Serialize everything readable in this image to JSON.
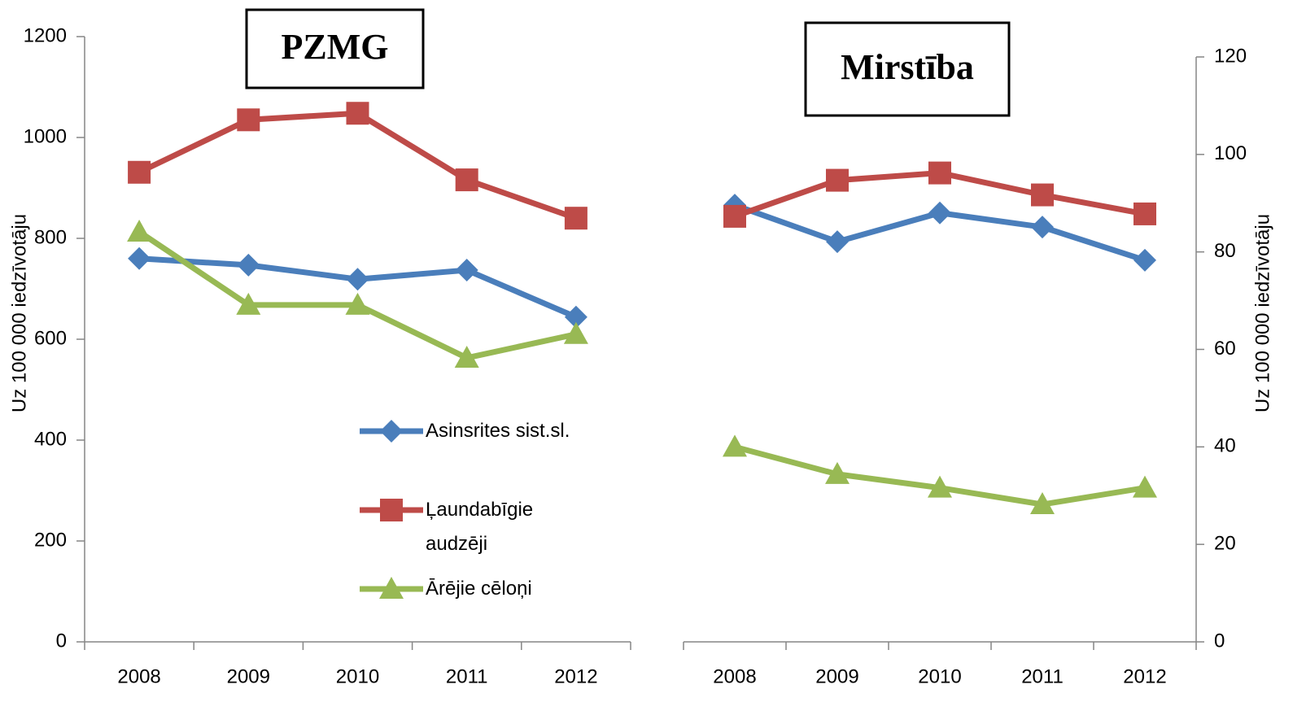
{
  "chart_data": [
    {
      "type": "line",
      "title": "PZMG",
      "ylabel": "Uz 100 000 iedzīvotāju",
      "categories": [
        "2008",
        "2009",
        "2010",
        "2011",
        "2012"
      ],
      "series": [
        {
          "name": "Asinsrites sist.sl.",
          "color": "#4a7ebb",
          "marker": "diamond",
          "values": [
            760,
            747,
            719,
            737,
            644
          ]
        },
        {
          "name": "Ļaundabīgie audzēji",
          "color": "#be4b48",
          "marker": "square",
          "values": [
            931,
            1035,
            1048,
            916,
            840
          ]
        },
        {
          "name": "Ārējie cēloņi",
          "color": "#98b954",
          "marker": "triangle",
          "values": [
            813,
            668,
            668,
            563,
            610
          ]
        }
      ],
      "ylim": [
        0,
        1200
      ],
      "yticks": [
        0,
        200,
        400,
        600,
        800,
        1000,
        1200
      ]
    },
    {
      "type": "line",
      "title": "Mirstība",
      "ylabel": "Uz 100 000 iedzīvotāju",
      "categories": [
        "2008",
        "2009",
        "2010",
        "2011",
        "2012"
      ],
      "series": [
        {
          "color": "#4a7ebb",
          "marker": "diamond",
          "values": [
            89.6,
            82.1,
            88,
            85.1,
            78.3
          ]
        },
        {
          "color": "#be4b48",
          "marker": "square",
          "values": [
            87.3,
            94.7,
            96.2,
            91.7,
            87.8
          ]
        },
        {
          "color": "#98b954",
          "marker": "triangle",
          "values": [
            40,
            34.4,
            31.6,
            28.2,
            31.6
          ]
        }
      ],
      "ylim": [
        0,
        120
      ],
      "yticks": [
        0,
        20,
        40,
        60,
        80,
        100,
        120
      ]
    }
  ]
}
